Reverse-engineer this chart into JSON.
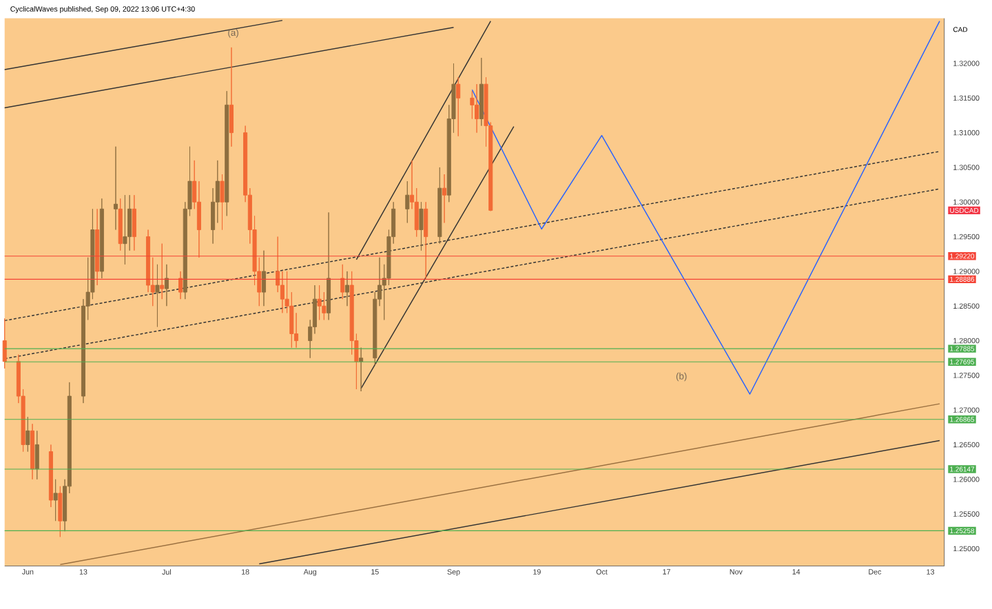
{
  "chart_data": {
    "type": "candlestick",
    "title": "CyclicalWaves published, Sep 09, 2022 13:06 UTC+4:30",
    "ylabel": "CAD",
    "x": [
      "2022-05-27",
      "2022-05-30",
      "2022-05-31",
      "2022-06-01",
      "2022-06-02",
      "2022-06-03",
      "2022-06-06",
      "2022-06-07",
      "2022-06-08",
      "2022-06-09",
      "2022-06-10",
      "2022-06-13",
      "2022-06-14",
      "2022-06-15",
      "2022-06-16",
      "2022-06-17",
      "2022-06-20",
      "2022-06-21",
      "2022-06-22",
      "2022-06-23",
      "2022-06-24",
      "2022-06-27",
      "2022-06-28",
      "2022-06-29",
      "2022-06-30",
      "2022-07-01",
      "2022-07-04",
      "2022-07-05",
      "2022-07-06",
      "2022-07-07",
      "2022-07-08",
      "2022-07-11",
      "2022-07-12",
      "2022-07-13",
      "2022-07-14",
      "2022-07-15",
      "2022-07-18",
      "2022-07-19",
      "2022-07-20",
      "2022-07-21",
      "2022-07-22",
      "2022-07-25",
      "2022-07-26",
      "2022-07-27",
      "2022-07-28",
      "2022-07-29",
      "2022-08-01",
      "2022-08-02",
      "2022-08-03",
      "2022-08-04",
      "2022-08-05",
      "2022-08-08",
      "2022-08-09",
      "2022-08-10",
      "2022-08-11",
      "2022-08-12",
      "2022-08-15",
      "2022-08-16",
      "2022-08-17",
      "2022-08-18",
      "2022-08-19",
      "2022-08-22",
      "2022-08-23",
      "2022-08-24",
      "2022-08-25",
      "2022-08-26",
      "2022-08-29",
      "2022-08-30",
      "2022-08-31",
      "2022-09-01",
      "2022-09-02",
      "2022-09-05",
      "2022-09-06",
      "2022-09-07",
      "2022-09-08",
      "2022-09-09"
    ],
    "ohlc": [
      [
        1.28,
        1.2832,
        1.276,
        1.277
      ],
      [
        1.277,
        1.278,
        1.271,
        1.272
      ],
      [
        1.272,
        1.273,
        1.264,
        1.265
      ],
      [
        1.265,
        1.269,
        1.264,
        1.267
      ],
      [
        1.267,
        1.268,
        1.26,
        1.2615
      ],
      [
        1.2615,
        1.267,
        1.26,
        1.265
      ],
      [
        1.264,
        1.265,
        1.256,
        1.257
      ],
      [
        1.257,
        1.26,
        1.254,
        1.258
      ],
      [
        1.258,
        1.259,
        1.2517,
        1.254
      ],
      [
        1.254,
        1.26,
        1.2525,
        1.259
      ],
      [
        1.259,
        1.274,
        1.258,
        1.272
      ],
      [
        1.272,
        1.286,
        1.271,
        1.285
      ],
      [
        1.285,
        1.292,
        1.283,
        1.287
      ],
      [
        1.287,
        1.299,
        1.286,
        1.296
      ],
      [
        1.296,
        1.299,
        1.288,
        1.29
      ],
      [
        1.29,
        1.3005,
        1.289,
        1.299
      ],
      [
        1.299,
        1.308,
        1.296,
        1.2997
      ],
      [
        1.299,
        1.3005,
        1.293,
        1.294
      ],
      [
        1.294,
        1.301,
        1.291,
        1.295
      ],
      [
        1.295,
        1.301,
        1.293,
        1.299
      ],
      [
        1.299,
        1.301,
        1.293,
        1.295
      ],
      [
        1.295,
        1.296,
        1.287,
        1.288
      ],
      [
        1.288,
        1.292,
        1.285,
        1.287
      ],
      [
        1.287,
        1.291,
        1.282,
        1.288
      ],
      [
        1.288,
        1.294,
        1.286,
        1.2875
      ],
      [
        1.2875,
        1.291,
        1.285,
        1.289
      ],
      [
        1.289,
        1.29,
        1.286,
        1.287
      ],
      [
        1.287,
        1.3,
        1.286,
        1.299
      ],
      [
        1.299,
        1.308,
        1.298,
        1.303
      ],
      [
        1.303,
        1.306,
        1.299,
        1.3
      ],
      [
        1.3,
        1.303,
        1.292,
        1.296
      ],
      [
        1.296,
        1.302,
        1.294,
        1.3
      ],
      [
        1.3,
        1.306,
        1.297,
        1.303
      ],
      [
        1.303,
        1.304,
        1.296,
        1.3
      ],
      [
        1.3,
        1.316,
        1.298,
        1.314
      ],
      [
        1.314,
        1.3223,
        1.308,
        1.31
      ],
      [
        1.31,
        1.311,
        1.3,
        1.301
      ],
      [
        1.301,
        1.302,
        1.294,
        1.296
      ],
      [
        1.296,
        1.298,
        1.288,
        1.29
      ],
      [
        1.29,
        1.292,
        1.285,
        1.287
      ],
      [
        1.287,
        1.293,
        1.285,
        1.29
      ],
      [
        1.29,
        1.295,
        1.287,
        1.288
      ],
      [
        1.288,
        1.29,
        1.284,
        1.286
      ],
      [
        1.286,
        1.29,
        1.284,
        1.285
      ],
      [
        1.285,
        1.287,
        1.279,
        1.281
      ],
      [
        1.281,
        1.284,
        1.279,
        1.28
      ],
      [
        1.28,
        1.283,
        1.2775,
        1.282
      ],
      [
        1.282,
        1.288,
        1.281,
        1.286
      ],
      [
        1.286,
        1.288,
        1.283,
        1.285
      ],
      [
        1.285,
        1.287,
        1.283,
        1.284
      ],
      [
        1.284,
        1.2985,
        1.283,
        1.289
      ],
      [
        1.289,
        1.291,
        1.286,
        1.287
      ],
      [
        1.287,
        1.29,
        1.285,
        1.288
      ],
      [
        1.288,
        1.29,
        1.278,
        1.28
      ],
      [
        1.28,
        1.281,
        1.273,
        1.277
      ],
      [
        1.277,
        1.279,
        1.2727,
        1.2775
      ],
      [
        1.2775,
        1.287,
        1.2765,
        1.286
      ],
      [
        1.286,
        1.292,
        1.285,
        1.288
      ],
      [
        1.288,
        1.291,
        1.283,
        1.289
      ],
      [
        1.289,
        1.296,
        1.288,
        1.295
      ],
      [
        1.295,
        1.3,
        1.294,
        1.299
      ],
      [
        1.299,
        1.303,
        1.297,
        1.301
      ],
      [
        1.301,
        1.306,
        1.299,
        1.3
      ],
      [
        1.3,
        1.302,
        1.295,
        1.296
      ],
      [
        1.296,
        1.3,
        1.293,
        1.299
      ],
      [
        1.299,
        1.3,
        1.289,
        1.295
      ],
      [
        1.295,
        1.305,
        1.294,
        1.302
      ],
      [
        1.302,
        1.304,
        1.297,
        1.301
      ],
      [
        1.301,
        1.314,
        1.3,
        1.312
      ],
      [
        1.312,
        1.32,
        1.31,
        1.317
      ],
      [
        1.317,
        1.318,
        1.3095,
        1.315
      ],
      [
        1.315,
        1.316,
        1.312,
        1.314
      ],
      [
        1.314,
        1.317,
        1.31,
        1.312
      ],
      [
        1.312,
        1.3208,
        1.311,
        1.317
      ],
      [
        1.317,
        1.318,
        1.308,
        1.311
      ],
      [
        1.311,
        1.3115,
        1.2987,
        1.2988
      ]
    ],
    "colors": [
      "#f26a35",
      "#f26a35",
      "#f26a35",
      "#8d6e3f",
      "#f26a35",
      "#8d6e3f",
      "#f26a35",
      "#8d6e3f",
      "#f26a35",
      "#8d6e3f",
      "#8d6e3f",
      "#8d6e3f",
      "#8d6e3f",
      "#8d6e3f",
      "#f26a35",
      "#8d6e3f",
      "#8d6e3f",
      "#f26a35",
      "#8d6e3f",
      "#8d6e3f",
      "#f26a35",
      "#f26a35",
      "#f26a35",
      "#8d6e3f",
      "#f26a35",
      "#8d6e3f",
      "#f26a35",
      "#8d6e3f",
      "#8d6e3f",
      "#f26a35",
      "#f26a35",
      "#8d6e3f",
      "#8d6e3f",
      "#f26a35",
      "#8d6e3f",
      "#f26a35",
      "#f26a35",
      "#f26a35",
      "#f26a35",
      "#f26a35",
      "#8d6e3f",
      "#f26a35",
      "#f26a35",
      "#f26a35",
      "#f26a35",
      "#f26a35",
      "#8d6e3f",
      "#8d6e3f",
      "#f26a35",
      "#f26a35",
      "#8d6e3f",
      "#f26a35",
      "#8d6e3f",
      "#f26a35",
      "#f26a35",
      "#8d6e3f",
      "#8d6e3f",
      "#8d6e3f",
      "#8d6e3f",
      "#8d6e3f",
      "#8d6e3f",
      "#8d6e3f",
      "#f26a35",
      "#f26a35",
      "#8d6e3f",
      "#f26a35",
      "#8d6e3f",
      "#f26a35",
      "#8d6e3f",
      "#8d6e3f",
      "#f26a35",
      "#f26a35",
      "#f26a35",
      "#8d6e3f",
      "#f26a35",
      "#f26a35"
    ],
    "series": [
      {
        "type": "line",
        "color": "#333333",
        "line_style": "solid",
        "x": [
          "2022-05-27",
          "2022-07-26"
        ],
        "values": [
          1.3191,
          1.3262
        ]
      },
      {
        "type": "line",
        "color": "#333333",
        "line_style": "solid",
        "x": [
          "2022-05-27",
          "2022-09-01"
        ],
        "values": [
          1.3136,
          1.3252
        ]
      },
      {
        "type": "line",
        "color": "#333333",
        "line_style": "solid",
        "x": [
          "2022-08-11",
          "2022-09-09"
        ],
        "values": [
          1.2917,
          1.3261
        ]
      },
      {
        "type": "line",
        "color": "#333333",
        "line_style": "solid",
        "x": [
          "2022-08-12",
          "2022-09-14"
        ],
        "values": [
          1.2731,
          1.3109
        ]
      },
      {
        "type": "line",
        "color": "#333333",
        "line_style": "dashed",
        "x": [
          "2022-05-27",
          "2022-12-15"
        ],
        "values": [
          1.2829,
          1.3073
        ]
      },
      {
        "type": "line",
        "color": "#333333",
        "line_style": "dashed",
        "x": [
          "2022-05-27",
          "2022-12-15"
        ],
        "values": [
          1.2774,
          1.3019
        ]
      },
      {
        "type": "line",
        "color": "#9a7040",
        "line_style": "solid",
        "x": [
          "2022-06-08",
          "2022-12-15"
        ],
        "values": [
          1.2477,
          1.2709
        ]
      },
      {
        "type": "line",
        "color": "#333333",
        "line_style": "solid",
        "x": [
          "2022-07-21",
          "2022-12-15"
        ],
        "values": [
          1.2478,
          1.2656
        ]
      },
      {
        "type": "line",
        "color": "#2962ff",
        "line_style": "solid",
        "x": [
          "2022-09-05",
          "2022-09-20",
          "2022-10-03",
          "2022-11-04",
          "2022-12-15"
        ],
        "values": [
          1.3162,
          1.2961,
          1.3096,
          1.2723,
          1.3261
        ]
      }
    ],
    "ref_lines": [
      {
        "axis": "y",
        "value": 1.2922,
        "label": "1.29220",
        "color": "#f44336"
      },
      {
        "axis": "y",
        "value": 1.28886,
        "label": "1.28886",
        "color": "#f44336"
      },
      {
        "axis": "y",
        "value": 1.27885,
        "label": "1.27885",
        "color": "#4caf50"
      },
      {
        "axis": "y",
        "value": 1.27695,
        "label": "1.27695",
        "color": "#4caf50"
      },
      {
        "axis": "y",
        "value": 1.26865,
        "label": "1.26865",
        "color": "#4caf50"
      },
      {
        "axis": "y",
        "value": 1.26147,
        "label": "1.26147",
        "color": "#4caf50"
      },
      {
        "axis": "y",
        "value": 1.25258,
        "label": "1.25258",
        "color": "#4caf50"
      }
    ],
    "annotations": [
      "(a)",
      "(b)",
      "USDCAD"
    ],
    "xlim": [
      "2022-05-27",
      "2022-12-16"
    ],
    "xticks": [
      {
        "value": "2022-06-01",
        "label": "Jun"
      },
      {
        "value": "2022-06-13",
        "label": "13"
      },
      {
        "value": "2022-07-01",
        "label": "Jul"
      },
      {
        "value": "2022-07-18",
        "label": "18"
      },
      {
        "value": "2022-08-01",
        "label": "Aug"
      },
      {
        "value": "2022-08-15",
        "label": "15"
      },
      {
        "value": "2022-09-01",
        "label": "Sep"
      },
      {
        "value": "2022-09-19",
        "label": "19"
      },
      {
        "value": "2022-10-03",
        "label": "Oct"
      },
      {
        "value": "2022-10-17",
        "label": "17"
      },
      {
        "value": "2022-11-01",
        "label": "Nov"
      },
      {
        "value": "2022-11-14",
        "label": "14"
      },
      {
        "value": "2022-12-01",
        "label": "Dec"
      },
      {
        "value": "2022-12-13",
        "label": "13"
      }
    ],
    "ylim": [
      1.2475,
      1.3265
    ],
    "yticks": [
      {
        "value": 1.25,
        "label": "1.25000"
      },
      {
        "value": 1.255,
        "label": "1.25500"
      },
      {
        "value": 1.26,
        "label": "1.26000"
      },
      {
        "value": 1.265,
        "label": "1.26500"
      },
      {
        "value": 1.27,
        "label": "1.27000"
      },
      {
        "value": 1.275,
        "label": "1.27500"
      },
      {
        "value": 1.28,
        "label": "1.28000"
      },
      {
        "value": 1.285,
        "label": "1.28500"
      },
      {
        "value": 1.29,
        "label": "1.29000"
      },
      {
        "value": 1.295,
        "label": "1.29500"
      },
      {
        "value": 1.3,
        "label": "1.30000"
      },
      {
        "value": 1.305,
        "label": "1.30500"
      },
      {
        "value": 1.31,
        "label": "1.31000"
      },
      {
        "value": 1.315,
        "label": "1.31500"
      },
      {
        "value": 1.32,
        "label": "1.32000"
      }
    ]
  }
}
